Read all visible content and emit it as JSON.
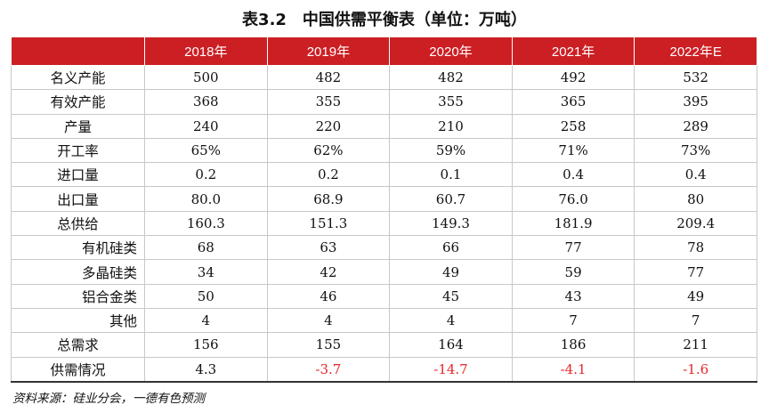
{
  "title": "表3.2　中国供需平衡表（单位：万吨）",
  "header": {
    "blank": "",
    "years": [
      "2018年",
      "2019年",
      "2020年",
      "2021年",
      "2022年E"
    ]
  },
  "rows": [
    {
      "label": "名义产能",
      "sub": false,
      "values": [
        "500",
        "482",
        "482",
        "492",
        "532"
      ]
    },
    {
      "label": "有效产能",
      "sub": false,
      "values": [
        "368",
        "355",
        "355",
        "365",
        "395"
      ]
    },
    {
      "label": "产量",
      "sub": false,
      "values": [
        "240",
        "220",
        "210",
        "258",
        "289"
      ]
    },
    {
      "label": "开工率",
      "sub": false,
      "values": [
        "65%",
        "62%",
        "59%",
        "71%",
        "73%"
      ]
    },
    {
      "label": "进口量",
      "sub": false,
      "values": [
        "0.2",
        "0.2",
        "0.1",
        "0.4",
        "0.4"
      ]
    },
    {
      "label": "出口量",
      "sub": false,
      "values": [
        "80.0",
        "68.9",
        "60.7",
        "76.0",
        "80"
      ]
    },
    {
      "label": "总供给",
      "sub": false,
      "values": [
        "160.3",
        "151.3",
        "149.3",
        "181.9",
        "209.4"
      ]
    },
    {
      "label": "有机硅类",
      "sub": true,
      "values": [
        "68",
        "63",
        "66",
        "77",
        "78"
      ]
    },
    {
      "label": "多晶硅类",
      "sub": true,
      "values": [
        "34",
        "42",
        "49",
        "59",
        "77"
      ]
    },
    {
      "label": "铝合金类",
      "sub": true,
      "values": [
        "50",
        "46",
        "45",
        "43",
        "49"
      ]
    },
    {
      "label": "其他",
      "sub": true,
      "values": [
        "4",
        "4",
        "4",
        "7",
        "7"
      ]
    },
    {
      "label": "总需求",
      "sub": false,
      "values": [
        "156",
        "155",
        "164",
        "186",
        "211"
      ]
    },
    {
      "label": "供需情况",
      "sub": false,
      "values": [
        "4.3",
        "-3.7",
        "-14.7",
        "-4.1",
        "-1.6"
      ]
    }
  ],
  "source": "资料来源：硅业分会，一德有色预测",
  "colors": {
    "header_bg": "#cc1f24",
    "negative": "#e8262a"
  }
}
